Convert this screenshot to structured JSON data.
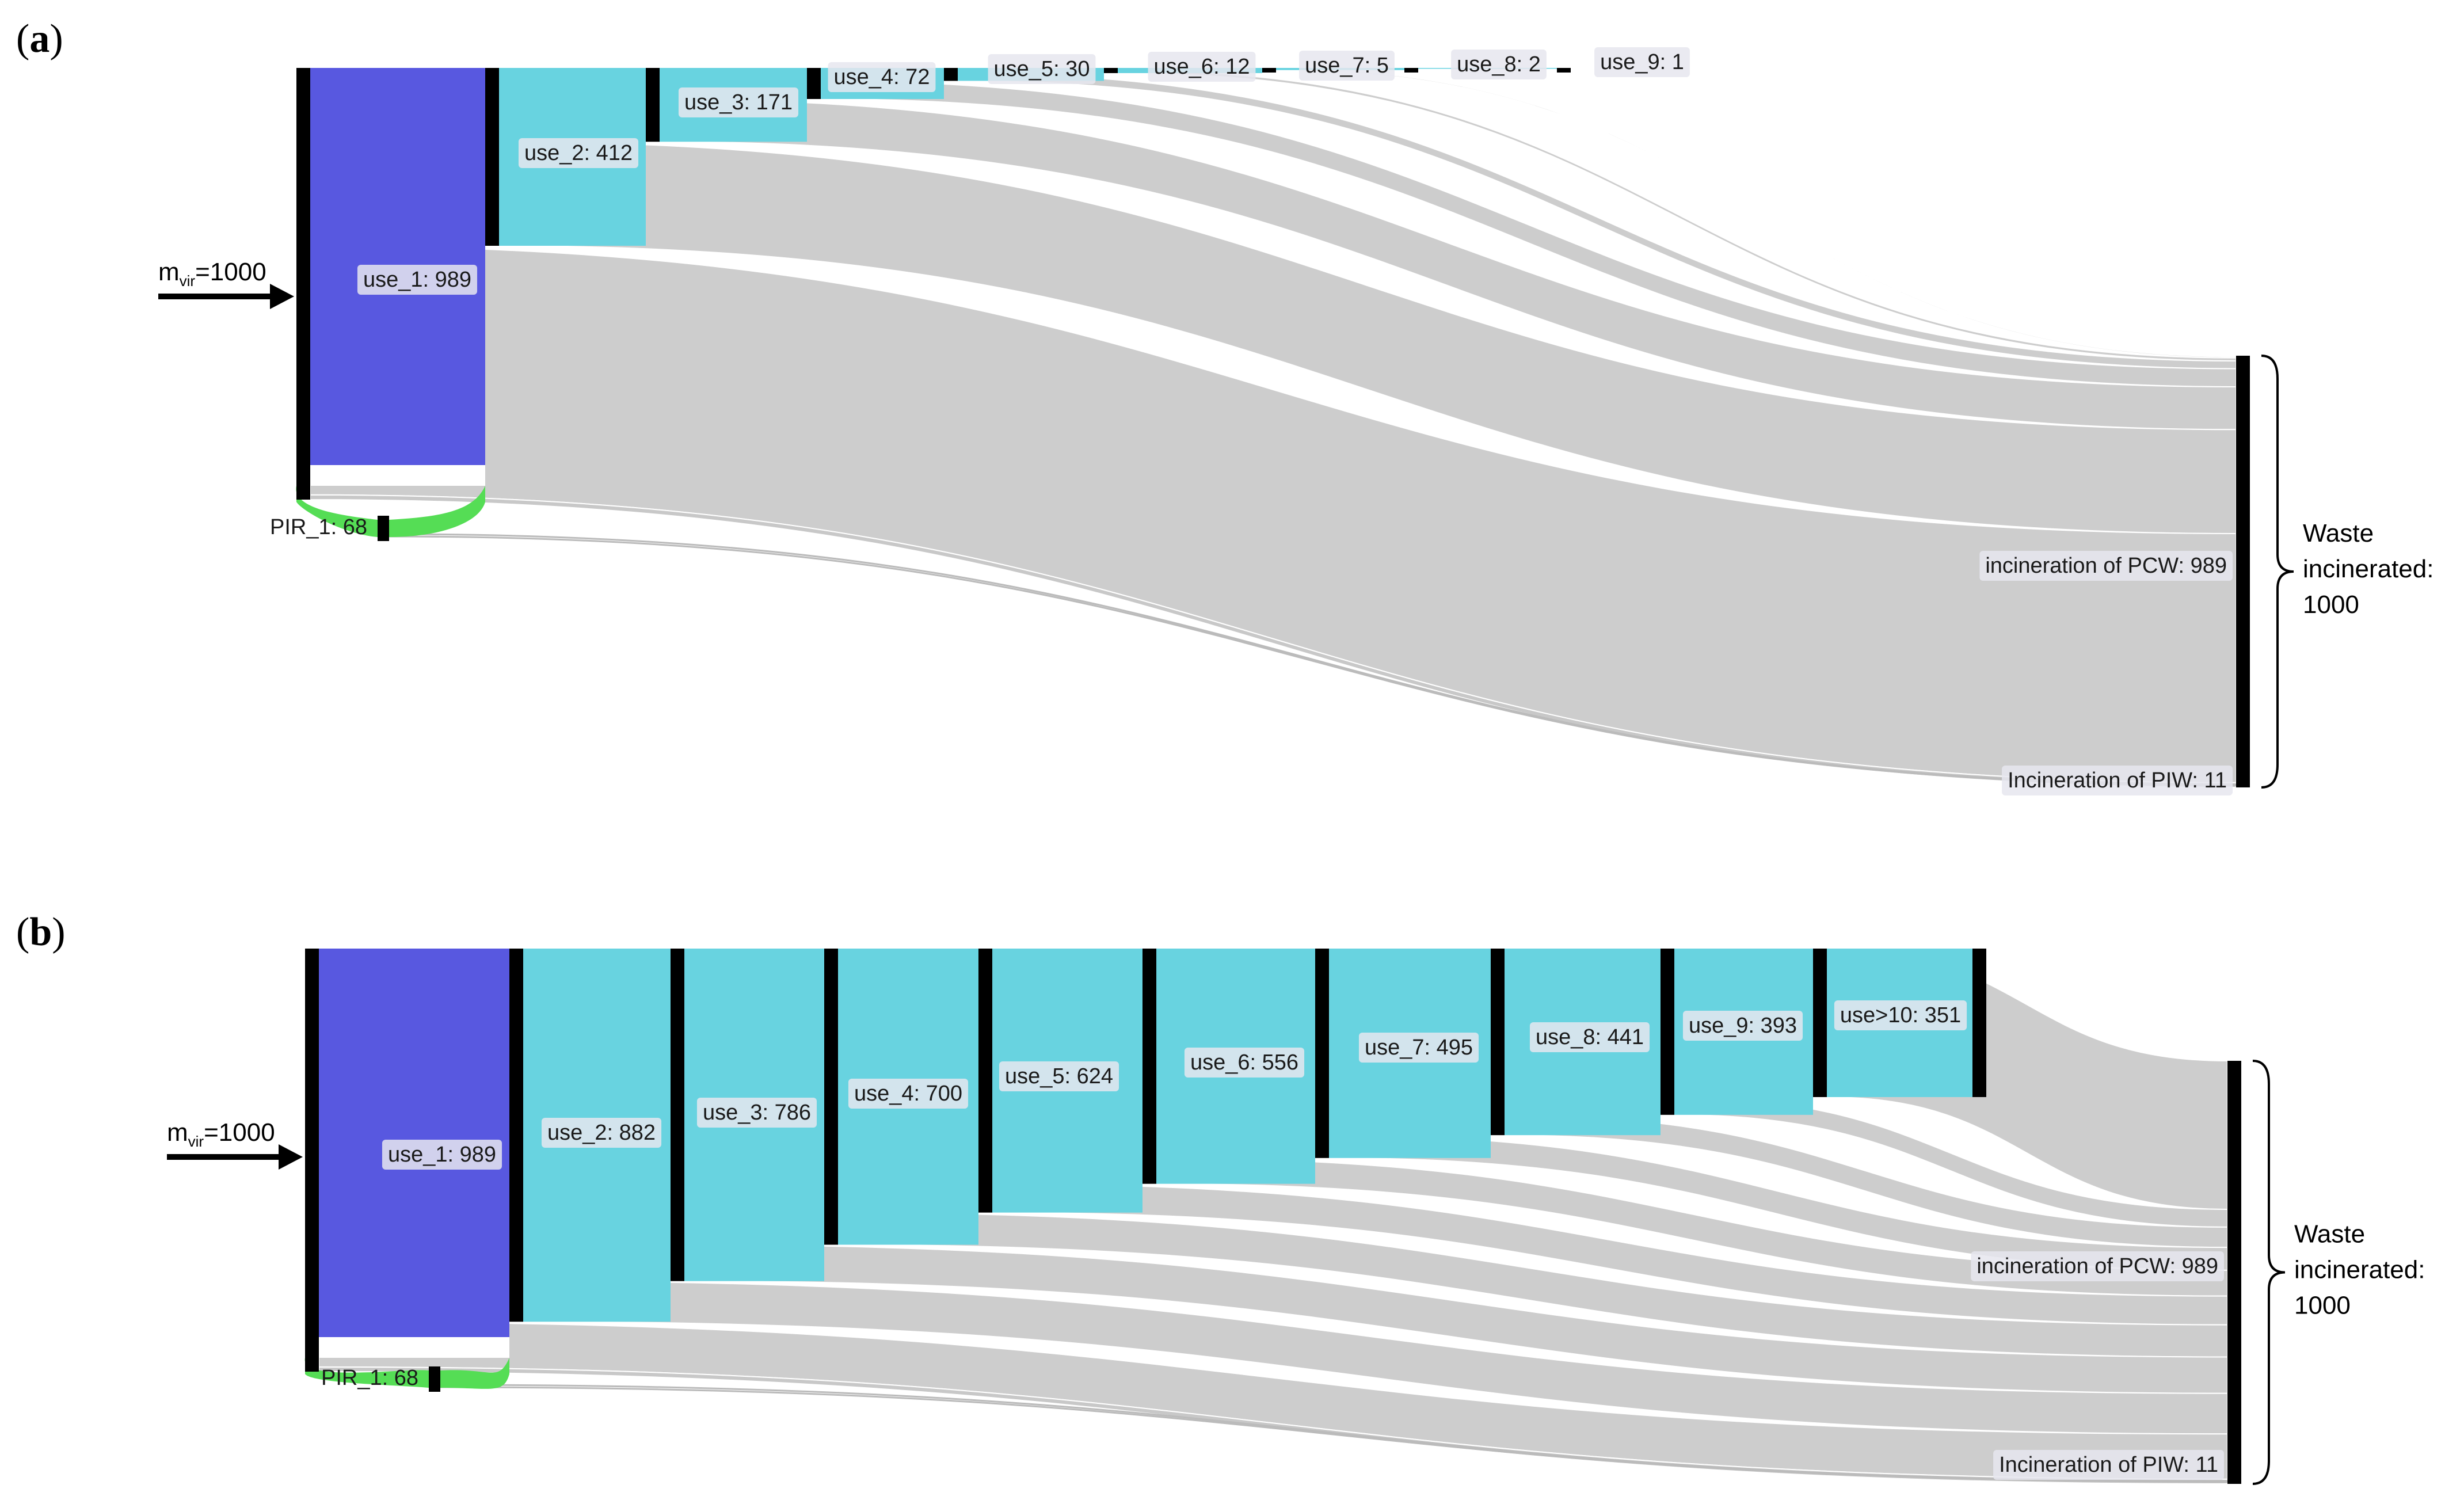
{
  "panels": [
    {
      "id": "a",
      "label": "(a)",
      "input_label_main": "m",
      "input_label_sub": "vir",
      "input_label_value": "=1000",
      "nodes": [
        {
          "key": "use_1",
          "label": "use_1: 989",
          "value": 989,
          "color": "#5858e0"
        },
        {
          "key": "use_2",
          "label": "use_2: 412",
          "value": 412,
          "color": "#68d3e0"
        },
        {
          "key": "use_3",
          "label": "use_3: 171",
          "value": 171,
          "color": "#68d3e0"
        },
        {
          "key": "use_4",
          "label": "use_4: 72",
          "value": 72,
          "color": "#68d3e0"
        },
        {
          "key": "use_5",
          "label": "use_5: 30",
          "value": 30,
          "color": "#68d3e0"
        },
        {
          "key": "use_6",
          "label": "use_6: 12",
          "value": 12,
          "color": "#68d3e0"
        },
        {
          "key": "use_7",
          "label": "use_7: 5",
          "value": 5,
          "color": "#68d3e0"
        },
        {
          "key": "use_8",
          "label": "use_8: 2",
          "value": 2,
          "color": "#68d3e0"
        },
        {
          "key": "use_9",
          "label": "use_9: 1",
          "value": 1,
          "color": "#68d3e0"
        }
      ],
      "pir": {
        "label": "PIR_1: 68",
        "value": 68
      },
      "pcw": {
        "label": "incineration of PCW: 989",
        "value": 989
      },
      "piw": {
        "label": "Incineration of PIW: 11",
        "value": 11
      },
      "waste": {
        "line1": "Waste",
        "line2": "incinerated:",
        "line3": "1000"
      }
    },
    {
      "id": "b",
      "label": "(b)",
      "input_label_main": "m",
      "input_label_sub": "vir",
      "input_label_value": "=1000",
      "nodes": [
        {
          "key": "use_1",
          "label": "use_1: 989",
          "value": 989,
          "color": "#5858e0"
        },
        {
          "key": "use_2",
          "label": "use_2: 882",
          "value": 882,
          "color": "#68d3e0"
        },
        {
          "key": "use_3",
          "label": "use_3: 786",
          "value": 786,
          "color": "#68d3e0"
        },
        {
          "key": "use_4",
          "label": "use_4: 700",
          "value": 700,
          "color": "#68d3e0"
        },
        {
          "key": "use_5",
          "label": "use_5: 624",
          "value": 624,
          "color": "#68d3e0"
        },
        {
          "key": "use_6",
          "label": "use_6: 556",
          "value": 556,
          "color": "#68d3e0"
        },
        {
          "key": "use_7",
          "label": "use_7: 495",
          "value": 495,
          "color": "#68d3e0"
        },
        {
          "key": "use_8",
          "label": "use_8: 441",
          "value": 441,
          "color": "#68d3e0"
        },
        {
          "key": "use_9",
          "label": "use_9: 393",
          "value": 393,
          "color": "#68d3e0"
        },
        {
          "key": "use_10",
          "label": "use>10: 351",
          "value": 351,
          "color": "#68d3e0"
        }
      ],
      "pir": {
        "label": "PIR_1: 68",
        "value": 68
      },
      "pcw": {
        "label": "incineration of PCW: 989",
        "value": 989
      },
      "piw": {
        "label": "Incineration of PIW: 11",
        "value": 11
      },
      "waste": {
        "line1": "Waste",
        "line2": "incinerated:",
        "line3": "1000"
      }
    }
  ],
  "colors": {
    "use1": "#5858e0",
    "use": "#68d3e0",
    "flow": "#c8c8c8",
    "pir": "#55dd55",
    "bar": "#000000",
    "label_bg": "#e6e6ee"
  }
}
